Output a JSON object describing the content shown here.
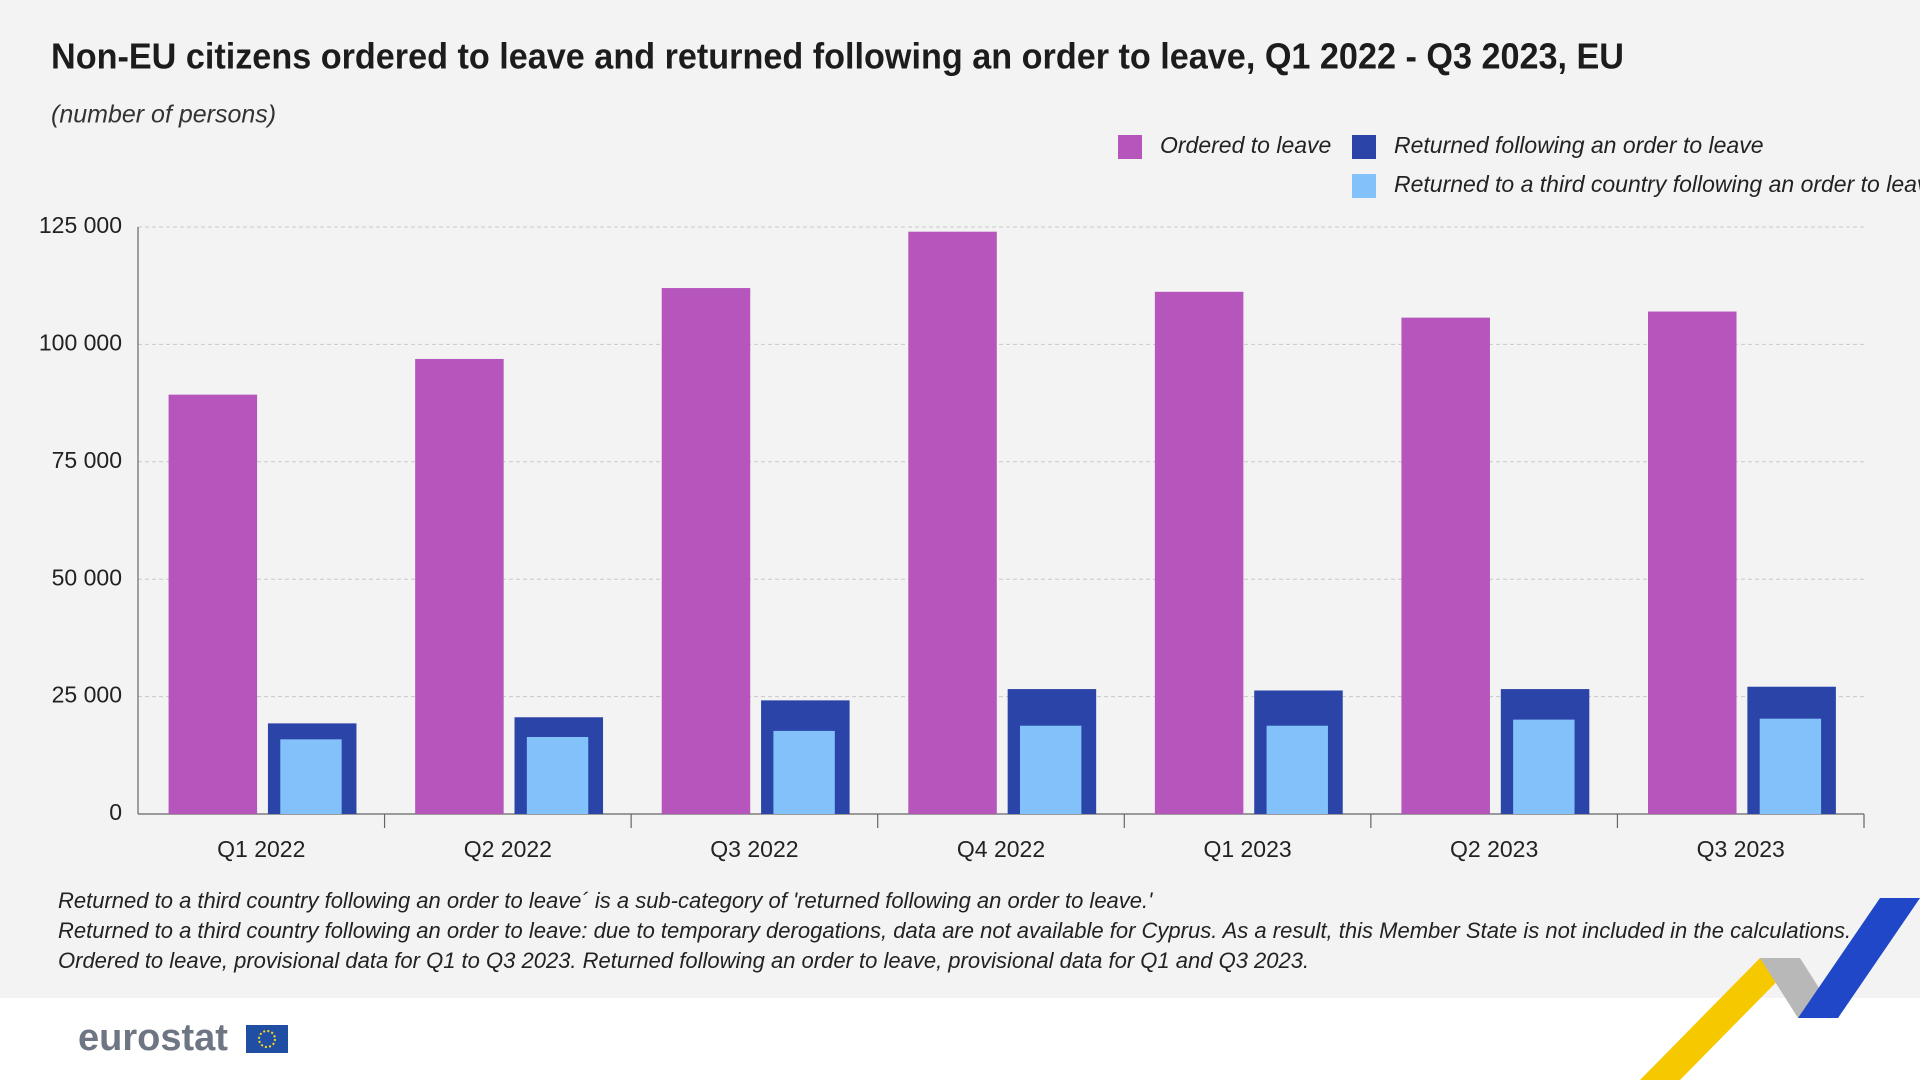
{
  "chart_data": {
    "type": "bar",
    "title": "Non-EU citizens ordered to leave and returned following an order to leave, Q1 2022 - Q3 2023, EU",
    "subtitle": "(number of persons)",
    "categories": [
      "Q1 2022",
      "Q2 2022",
      "Q3 2022",
      "Q4 2022",
      "Q1 2023",
      "Q2 2023",
      "Q3 2023"
    ],
    "series": [
      {
        "name": "Ordered to leave",
        "color": "#b656bd",
        "values": [
          89300,
          96900,
          112000,
          124000,
          111200,
          105700,
          107000
        ]
      },
      {
        "name": "Returned following an order to leave",
        "color": "#2a44a8",
        "values": [
          19300,
          20600,
          24200,
          26600,
          26300,
          26600,
          27100
        ]
      },
      {
        "name": "Returned to a third country following an order to leave",
        "color": "#82c1fa",
        "values": [
          15900,
          16400,
          17700,
          18800,
          18800,
          20100,
          20300
        ]
      }
    ],
    "ylim": [
      0,
      125000
    ],
    "yticks": [
      0,
      {
        "value": 25000,
        "label": "25 000"
      },
      {
        "value": 50000,
        "label": "50 000"
      },
      {
        "value": 75000,
        "label": "75 000"
      },
      {
        "value": 100000,
        "label": "100 000"
      },
      {
        "value": 125000,
        "label": "125 000"
      }
    ],
    "grid": true,
    "legend": "top-right",
    "notes": [
      "Returned to a third country following an order to leave´ is a sub-category of 'returned following an order to leave.'",
      "Returned to a third country following an order to leave: due to temporary derogations, data are not available for Cyprus. As a result, this Member State is not included in the calculations.",
      "Ordered to leave, provisional data for Q1 to Q3 2023. Returned following an order to leave, provisional data for Q1 and Q3 2023."
    ]
  },
  "footer": {
    "logo": "eurostat"
  }
}
